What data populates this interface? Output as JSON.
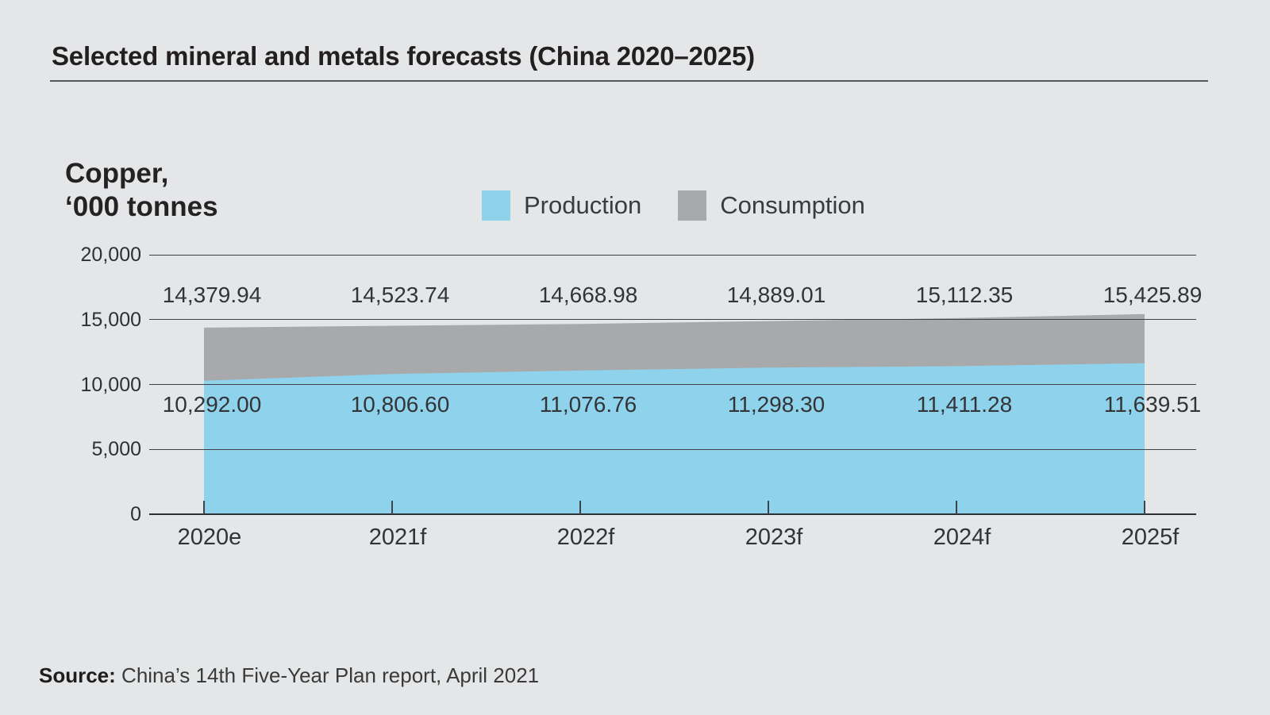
{
  "header": {
    "title": "Selected mineral and metals forecasts (China 2020–2025)"
  },
  "chart": {
    "unit_label_line1": "Copper,",
    "unit_label_line2": "‘000 tonnes",
    "legend": [
      {
        "label": "Production",
        "color": "#8fd2ec"
      },
      {
        "label": "Consumption",
        "color": "#a8a9ab"
      }
    ]
  },
  "chart_data": {
    "type": "area",
    "title": "Selected mineral and metals forecasts (China 2020–2025)",
    "unit": "Copper, ‘000 tonnes",
    "categories": [
      "2020e",
      "2021f",
      "2022f",
      "2023f",
      "2024f",
      "2025f"
    ],
    "series": [
      {
        "name": "Production",
        "color": "#8fd2ec",
        "values": [
          10292.0,
          10806.6,
          11076.76,
          11298.3,
          11411.28,
          11639.51
        ],
        "labels": [
          "10,292.00",
          "10,806.60",
          "11,076.76",
          "11,298.30",
          "11,411.28",
          "11,639.51"
        ]
      },
      {
        "name": "Consumption",
        "color": "#a8a9ab",
        "values": [
          14379.94,
          14523.74,
          14668.98,
          14889.01,
          15112.35,
          15425.89
        ],
        "labels": [
          "14,379.94",
          "14,523.74",
          "14,668.98",
          "14,889.01",
          "15,112.35",
          "15,425.89"
        ]
      }
    ],
    "ylim": [
      0,
      20000
    ],
    "y_ticks": [
      {
        "value": 0,
        "label": "0"
      },
      {
        "value": 5000,
        "label": "5,000"
      },
      {
        "value": 10000,
        "label": "10,000"
      },
      {
        "value": 15000,
        "label": "15,000"
      },
      {
        "value": 20000,
        "label": "20,000"
      }
    ],
    "grid": true,
    "legend_position": "top"
  },
  "source": {
    "prefix": "Source:",
    "text": "China’s 14th Five-Year Plan report, April 2021"
  }
}
